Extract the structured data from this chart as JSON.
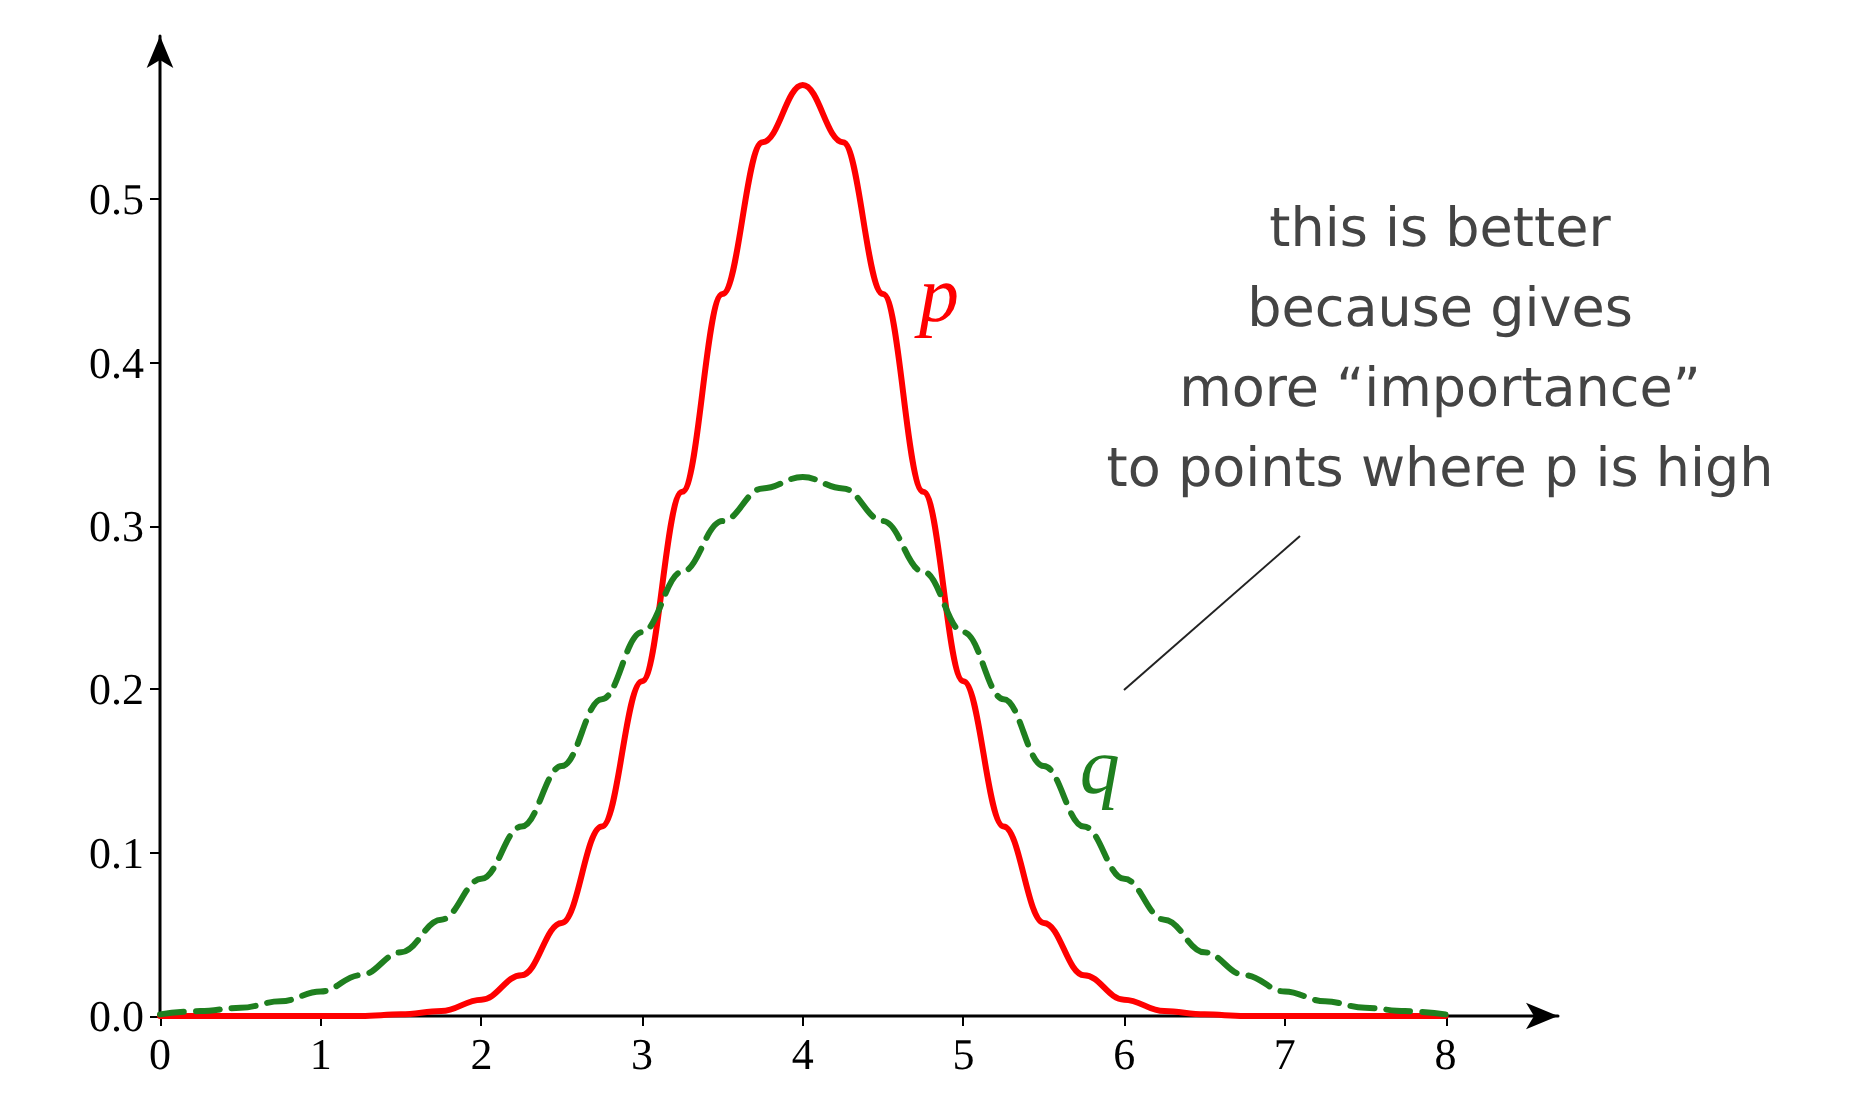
{
  "chart_data": {
    "type": "line",
    "x": [
      0,
      0.25,
      0.5,
      0.75,
      1,
      1.25,
      1.5,
      1.75,
      2,
      2.25,
      2.5,
      2.75,
      3,
      3.25,
      3.5,
      3.75,
      4,
      4.25,
      4.5,
      4.75,
      5,
      5.25,
      5.5,
      5.75,
      6,
      6.25,
      6.5,
      6.75,
      7,
      7.25,
      7.5,
      7.75,
      8
    ],
    "series": [
      {
        "name": "p",
        "color": "#ff0000",
        "line_style": "solid",
        "values": [
          0,
          0,
          0,
          0,
          0,
          0,
          0.001,
          0.003,
          0.01,
          0.025,
          0.057,
          0.116,
          0.205,
          0.321,
          0.442,
          0.535,
          0.57,
          0.535,
          0.442,
          0.321,
          0.205,
          0.116,
          0.057,
          0.025,
          0.01,
          0.003,
          0.001,
          0,
          0,
          0,
          0,
          0,
          0
        ]
      },
      {
        "name": "q",
        "color": "#1f7f1f",
        "line_style": "dashed",
        "values": [
          0.001,
          0.003,
          0.005,
          0.009,
          0.015,
          0.025,
          0.039,
          0.059,
          0.084,
          0.116,
          0.153,
          0.194,
          0.235,
          0.272,
          0.303,
          0.323,
          0.33,
          0.323,
          0.303,
          0.272,
          0.235,
          0.194,
          0.153,
          0.116,
          0.084,
          0.059,
          0.039,
          0.025,
          0.015,
          0.009,
          0.005,
          0.003,
          0.001
        ]
      }
    ],
    "xlim": [
      0,
      8.7
    ],
    "xticks": [
      0,
      1,
      2,
      3,
      4,
      5,
      6,
      7,
      8
    ],
    "ylim": [
      0,
      0.6
    ],
    "yticks": [
      {
        "value": 0,
        "label": "0.0"
      },
      {
        "value": 0.1,
        "label": "0.1"
      },
      {
        "value": 0.2,
        "label": "0.2"
      },
      {
        "value": 0.3,
        "label": "0.3"
      },
      {
        "value": 0.4,
        "label": "0.4"
      },
      {
        "value": 0.5,
        "label": "0.5"
      }
    ],
    "annotations": [
      "this is better\nbecause gives\nmore “importance”\nto points where p is high"
    ],
    "grid": false,
    "legend": false,
    "marker": "none"
  }
}
